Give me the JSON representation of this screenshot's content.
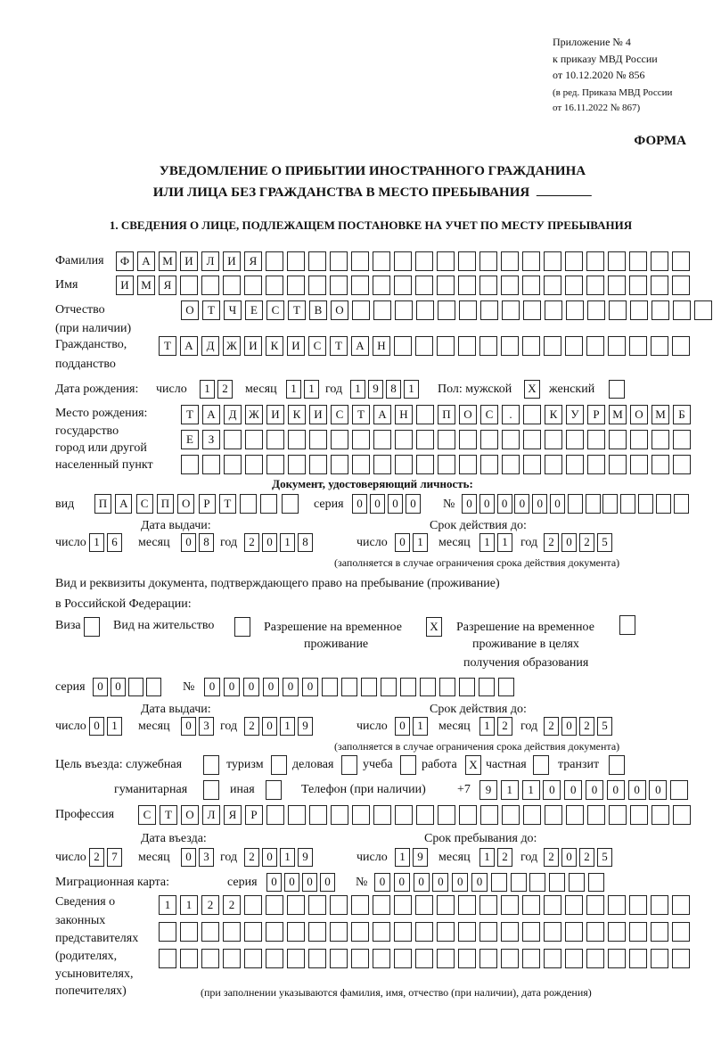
{
  "header": {
    "lines": [
      "Приложение № 4",
      "к приказу МВД России",
      "от 10.12.2020 № 856",
      "(в ред. Приказа МВД России",
      "от 16.11.2022 № 867)"
    ],
    "form_label": "ФОРМА"
  },
  "title": {
    "line1": "УВЕДОМЛЕНИЕ О ПРИБЫТИИ ИНОСТРАННОГО ГРАЖДАНИНА",
    "line2": "ИЛИ ЛИЦА БЕЗ ГРАЖДАНСТВА В МЕСТО ПРЕБЫВАНИЯ"
  },
  "section1": {
    "heading": "1. СВЕДЕНИЯ О ЛИЦЕ, ПОДЛЕЖАЩЕМ ПОСТАНОВКЕ НА УЧЕТ ПО МЕСТУ ПРЕБЫВАНИЯ"
  },
  "labels": {
    "surname": "Фамилия",
    "name": "Имя",
    "patronymic": "Отчество",
    "patronymic_note": "(при наличии)",
    "citizenship": "Гражданство,",
    "citizenship2": "подданство",
    "birth_date": "Дата рождения:",
    "day": "число",
    "month": "месяц",
    "year": "год",
    "sex": "Пол: мужской",
    "female": "женский",
    "birthplace": [
      "Место рождения:",
      "государство",
      "город или другой",
      "населенный пункт"
    ],
    "id_doc": "Документ, удостоверяющий личность:",
    "kind": "вид",
    "series": "серия",
    "number": "№",
    "issue_date": "Дата выдачи:",
    "valid_until": "Срок действия до:",
    "validity_note": "(заполняется в случае ограничения срока действия документа)",
    "stay_doc1": "Вид и реквизиты документа, подтверждающего право на пребывание (проживание)",
    "stay_doc2": "в Российской Федерации:",
    "visa": "Виза",
    "residence_permit": "Вид на жительство",
    "rvp": [
      "Разрешение на временное",
      "проживание"
    ],
    "rvp_edu": [
      "Разрешение на временное",
      "проживание в целях",
      "получения образования"
    ],
    "purpose": "Цель въезда: служебная",
    "tourism": "туризм",
    "business": "деловая",
    "study": "учеба",
    "work": "работа",
    "private": "частная",
    "transit": "транзит",
    "humanitarian": "гуманитарная",
    "other": "иная",
    "phone": "Телефон (при наличии)",
    "phone_prefix": "+7",
    "profession": "Профессия",
    "entry_date": "Дата въезда:",
    "stay_until": "Срок пребывания до:",
    "migration_card": "Миграционная карта:",
    "guardians": [
      "Сведения о",
      "законных",
      "представителях",
      "(родителях,",
      "усыновителях,",
      "попечителях)"
    ],
    "guardians_note": "(при заполнении указываются фамилия, имя, отчество (при наличии), дата рождения)"
  },
  "person": {
    "surname": [
      "Ф",
      "А",
      "М",
      "И",
      "Л",
      "И",
      "Я",
      "",
      "",
      "",
      "",
      "",
      "",
      "",
      "",
      "",
      "",
      "",
      "",
      "",
      "",
      "",
      "",
      "",
      "",
      "",
      ""
    ],
    "name": [
      "И",
      "М",
      "Я",
      "",
      "",
      "",
      "",
      "",
      "",
      "",
      "",
      "",
      "",
      "",
      "",
      "",
      "",
      "",
      "",
      "",
      "",
      "",
      "",
      "",
      "",
      "",
      ""
    ],
    "patronymic": [
      "О",
      "Т",
      "Ч",
      "Е",
      "С",
      "Т",
      "В",
      "О",
      "",
      "",
      "",
      "",
      "",
      "",
      "",
      "",
      "",
      "",
      "",
      "",
      "",
      "",
      "",
      "",
      ""
    ],
    "citizenship": [
      "Т",
      "А",
      "Д",
      "Ж",
      "И",
      "К",
      "И",
      "С",
      "Т",
      "А",
      "Н",
      "",
      "",
      "",
      "",
      "",
      "",
      "",
      "",
      "",
      "",
      "",
      "",
      "",
      ""
    ],
    "birth_day": [
      "1",
      "2"
    ],
    "birth_month": [
      "1",
      "1"
    ],
    "birth_year": [
      "1",
      "9",
      "8",
      "1"
    ],
    "sex_male": [
      "X"
    ],
    "sex_female": [
      ""
    ],
    "birthplace1": [
      "Т",
      "А",
      "Д",
      "Ж",
      "И",
      "К",
      "И",
      "С",
      "Т",
      "А",
      "Н",
      "",
      "П",
      "О",
      "С",
      ".",
      "",
      "К",
      "У",
      "Р",
      "М",
      "О",
      "М",
      "Б"
    ],
    "birthplace2": [
      "Е",
      "З",
      "",
      "",
      "",
      "",
      "",
      "",
      "",
      "",
      "",
      "",
      "",
      "",
      "",
      "",
      "",
      "",
      "",
      "",
      "",
      "",
      "",
      ""
    ],
    "birthplace3": [
      "",
      "",
      "",
      "",
      "",
      "",
      "",
      "",
      "",
      "",
      "",
      "",
      "",
      "",
      "",
      "",
      "",
      "",
      "",
      "",
      "",
      "",
      "",
      ""
    ]
  },
  "id_document": {
    "kind": [
      "П",
      "А",
      "С",
      "П",
      "О",
      "Р",
      "Т",
      "",
      "",
      ""
    ],
    "series": [
      "0",
      "0",
      "0",
      "0"
    ],
    "number": [
      "0",
      "0",
      "0",
      "0",
      "0",
      "0",
      "",
      "",
      "",
      "",
      "",
      "",
      ""
    ],
    "issue_day": [
      "1",
      "6"
    ],
    "issue_month": [
      "0",
      "8"
    ],
    "issue_year": [
      "2",
      "0",
      "1",
      "8"
    ],
    "valid_day": [
      "0",
      "1"
    ],
    "valid_month": [
      "1",
      "1"
    ],
    "valid_year": [
      "2",
      "0",
      "2",
      "5"
    ]
  },
  "stay_document": {
    "visa": [
      ""
    ],
    "residence_permit": [
      ""
    ],
    "rvp": [
      "X"
    ],
    "rvp_edu": [
      ""
    ],
    "series": [
      "0",
      "0",
      "",
      ""
    ],
    "number": [
      "0",
      "0",
      "0",
      "0",
      "0",
      "0",
      "",
      "",
      "",
      "",
      "",
      "",
      "",
      "",
      "",
      ""
    ],
    "issue_day": [
      "0",
      "1"
    ],
    "issue_month": [
      "0",
      "3"
    ],
    "issue_year": [
      "2",
      "0",
      "1",
      "9"
    ],
    "valid_day": [
      "0",
      "1"
    ],
    "valid_month": [
      "1",
      "2"
    ],
    "valid_year": [
      "2",
      "0",
      "2",
      "5"
    ]
  },
  "purpose": {
    "service": [
      ""
    ],
    "tourism": [
      ""
    ],
    "business": [
      ""
    ],
    "study": [
      ""
    ],
    "work": [
      "X"
    ],
    "private": [
      ""
    ],
    "transit": [
      ""
    ],
    "humanitarian": [
      ""
    ],
    "other": [
      ""
    ]
  },
  "phone": [
    "9",
    "1",
    "1",
    "0",
    "0",
    "0",
    "0",
    "0",
    "0",
    ""
  ],
  "profession": [
    "С",
    "Т",
    "О",
    "Л",
    "Я",
    "Р",
    "",
    "",
    "",
    "",
    "",
    "",
    "",
    "",
    "",
    "",
    "",
    "",
    "",
    "",
    "",
    "",
    "",
    "",
    "",
    ""
  ],
  "entry": {
    "day": [
      "2",
      "7"
    ],
    "month": [
      "0",
      "3"
    ],
    "year": [
      "2",
      "0",
      "1",
      "9"
    ]
  },
  "stay_until": {
    "day": [
      "1",
      "9"
    ],
    "month": [
      "1",
      "2"
    ],
    "year": [
      "2",
      "0",
      "2",
      "5"
    ]
  },
  "migration_card": {
    "series": [
      "0",
      "0",
      "0",
      "0"
    ],
    "number": [
      "0",
      "0",
      "0",
      "0",
      "0",
      "0",
      "",
      "",
      "",
      "",
      "",
      ""
    ]
  },
  "guardians": {
    "row1": [
      "1",
      "1",
      "2",
      "2",
      "",
      "",
      "",
      "",
      "",
      "",
      "",
      "",
      "",
      "",
      "",
      "",
      "",
      "",
      "",
      "",
      "",
      "",
      "",
      "",
      ""
    ],
    "row2": [
      "",
      "",
      "",
      "",
      "",
      "",
      "",
      "",
      "",
      "",
      "",
      "",
      "",
      "",
      "",
      "",
      "",
      "",
      "",
      "",
      "",
      "",
      "",
      "",
      ""
    ],
    "row3": [
      "",
      "",
      "",
      "",
      "",
      "",
      "",
      "",
      "",
      "",
      "",
      "",
      "",
      "",
      "",
      "",
      "",
      "",
      "",
      "",
      "",
      "",
      "",
      "",
      ""
    ]
  }
}
